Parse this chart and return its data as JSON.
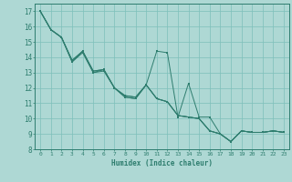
{
  "xlabel": "Humidex (Indice chaleur)",
  "ylabel": "",
  "xlim": [
    -0.5,
    23.5
  ],
  "ylim": [
    8,
    17.5
  ],
  "yticks": [
    8,
    9,
    10,
    11,
    12,
    13,
    14,
    15,
    16,
    17
  ],
  "xticks": [
    0,
    1,
    2,
    3,
    4,
    5,
    6,
    7,
    8,
    9,
    10,
    11,
    12,
    13,
    14,
    15,
    16,
    17,
    18,
    19,
    20,
    21,
    22,
    23
  ],
  "background_color": "#aed8d4",
  "grid_color": "#7dbfba",
  "line_color": "#2e7d6e",
  "series": [
    [
      17.0,
      15.8,
      15.3,
      13.7,
      14.4,
      13.0,
      13.1,
      12.0,
      11.4,
      11.3,
      12.2,
      14.4,
      14.3,
      10.1,
      12.3,
      10.1,
      10.1,
      9.0,
      8.5,
      9.2,
      9.1,
      9.1,
      9.2,
      9.1
    ],
    [
      17.0,
      15.8,
      15.3,
      13.7,
      14.3,
      13.0,
      13.2,
      12.0,
      11.4,
      11.3,
      12.2,
      11.3,
      11.1,
      10.2,
      10.1,
      10.0,
      9.2,
      9.0,
      8.5,
      9.2,
      9.1,
      9.1,
      9.2,
      9.1
    ],
    [
      17.0,
      15.8,
      15.3,
      13.8,
      14.4,
      13.1,
      13.2,
      12.0,
      11.5,
      11.4,
      12.2,
      11.3,
      11.1,
      10.2,
      10.1,
      10.0,
      9.2,
      9.0,
      8.5,
      9.2,
      9.1,
      9.1,
      9.2,
      9.1
    ],
    [
      17.0,
      15.8,
      15.3,
      13.8,
      14.4,
      13.1,
      13.2,
      12.0,
      11.5,
      11.4,
      12.2,
      11.3,
      11.1,
      10.2,
      10.1,
      10.0,
      9.2,
      9.0,
      8.5,
      9.2,
      9.1,
      9.1,
      9.2,
      9.1
    ]
  ]
}
